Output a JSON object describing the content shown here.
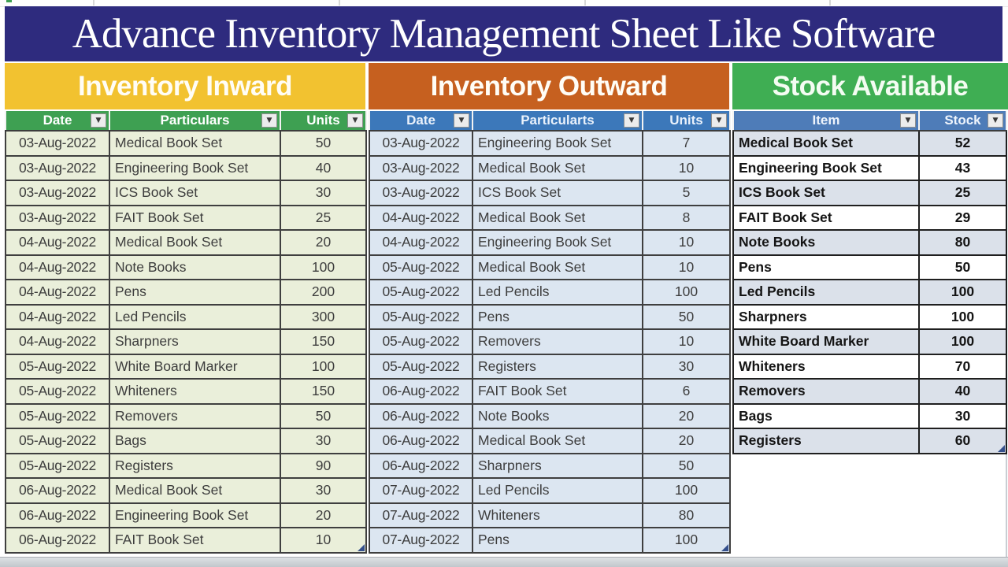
{
  "title": "Advance Inventory Management Sheet Like Software",
  "icons": {
    "filter_dropdown": "▼"
  },
  "colors": {
    "title_bg": "#2e2b7e",
    "inward_band_bg": "#f2c230",
    "outward_band_bg": "#c6601f",
    "stock_band_bg": "#3fae53",
    "inward_header_bg": "#3ea052",
    "outward_header_bg": "#3c78ba",
    "stock_header_bg": "#4e7cb8",
    "inward_row_bg": "#eaefda",
    "outward_row_bg": "#dce6f1",
    "stock_banded_row_bg": "#dbe1ea"
  },
  "inward": {
    "band_label": "Inventory Inward",
    "columns": [
      "Date",
      "Particulars",
      "Units"
    ],
    "rows": [
      [
        "03-Aug-2022",
        "Medical Book Set",
        "50"
      ],
      [
        "03-Aug-2022",
        "Engineering Book Set",
        "40"
      ],
      [
        "03-Aug-2022",
        "ICS Book Set",
        "30"
      ],
      [
        "03-Aug-2022",
        "FAIT Book Set",
        "25"
      ],
      [
        "04-Aug-2022",
        "Medical Book Set",
        "20"
      ],
      [
        "04-Aug-2022",
        "Note Books",
        "100"
      ],
      [
        "04-Aug-2022",
        "Pens",
        "200"
      ],
      [
        "04-Aug-2022",
        "Led Pencils",
        "300"
      ],
      [
        "04-Aug-2022",
        "Sharpners",
        "150"
      ],
      [
        "05-Aug-2022",
        "White Board Marker",
        "100"
      ],
      [
        "05-Aug-2022",
        "Whiteners",
        "150"
      ],
      [
        "05-Aug-2022",
        "Removers",
        "50"
      ],
      [
        "05-Aug-2022",
        "Bags",
        "30"
      ],
      [
        "05-Aug-2022",
        "Registers",
        "90"
      ],
      [
        "06-Aug-2022",
        "Medical Book Set",
        "30"
      ],
      [
        "06-Aug-2022",
        "Engineering Book Set",
        "20"
      ],
      [
        "06-Aug-2022",
        "FAIT Book Set",
        "10"
      ]
    ]
  },
  "outward": {
    "band_label": "Inventory Outward",
    "columns": [
      "Date",
      "Particularts",
      "Units"
    ],
    "rows": [
      [
        "03-Aug-2022",
        "Engineering Book Set",
        "7"
      ],
      [
        "03-Aug-2022",
        "Medical Book Set",
        "10"
      ],
      [
        "03-Aug-2022",
        "ICS Book Set",
        "5"
      ],
      [
        "04-Aug-2022",
        "Medical Book Set",
        "8"
      ],
      [
        "04-Aug-2022",
        "Engineering Book Set",
        "10"
      ],
      [
        "05-Aug-2022",
        "Medical Book Set",
        "10"
      ],
      [
        "05-Aug-2022",
        "Led Pencils",
        "100"
      ],
      [
        "05-Aug-2022",
        "Pens",
        "50"
      ],
      [
        "05-Aug-2022",
        "Removers",
        "10"
      ],
      [
        "05-Aug-2022",
        "Registers",
        "30"
      ],
      [
        "06-Aug-2022",
        "FAIT Book Set",
        "6"
      ],
      [
        "06-Aug-2022",
        "Note Books",
        "20"
      ],
      [
        "06-Aug-2022",
        "Medical Book Set",
        "20"
      ],
      [
        "06-Aug-2022",
        "Sharpners",
        "50"
      ],
      [
        "07-Aug-2022",
        "Led Pencils",
        "100"
      ],
      [
        "07-Aug-2022",
        "Whiteners",
        "80"
      ],
      [
        "07-Aug-2022",
        "Pens",
        "100"
      ]
    ]
  },
  "stock": {
    "band_label": "Stock Available",
    "columns": [
      "Item",
      "Stock"
    ],
    "rows": [
      [
        "Medical Book Set",
        "52"
      ],
      [
        "Engineering Book Set",
        "43"
      ],
      [
        "ICS Book Set",
        "25"
      ],
      [
        "FAIT Book Set",
        "29"
      ],
      [
        "Note Books",
        "80"
      ],
      [
        "Pens",
        "50"
      ],
      [
        "Led Pencils",
        "100"
      ],
      [
        "Sharpners",
        "100"
      ],
      [
        "White Board Marker",
        "100"
      ],
      [
        "Whiteners",
        "70"
      ],
      [
        "Removers",
        "40"
      ],
      [
        "Bags",
        "30"
      ],
      [
        "Registers",
        "60"
      ]
    ]
  }
}
